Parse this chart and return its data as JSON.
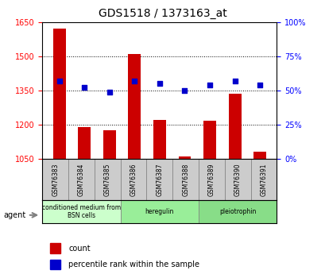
{
  "title": "GDS1518 / 1373163_at",
  "categories": [
    "GSM76383",
    "GSM76384",
    "GSM76385",
    "GSM76386",
    "GSM76387",
    "GSM76388",
    "GSM76389",
    "GSM76390",
    "GSM76391"
  ],
  "counts": [
    1620,
    1190,
    1175,
    1510,
    1220,
    1060,
    1218,
    1335,
    1080
  ],
  "percentiles": [
    57,
    52,
    49,
    57,
    55,
    50,
    54,
    57,
    54
  ],
  "ylim_left": [
    1050,
    1650
  ],
  "ylim_right": [
    0,
    100
  ],
  "yticks_left": [
    1050,
    1200,
    1350,
    1500,
    1650
  ],
  "yticks_right": [
    0,
    25,
    50,
    75,
    100
  ],
  "bar_color": "#cc0000",
  "dot_color": "#0000cc",
  "bar_bottom": 1050,
  "groups": [
    {
      "label": "conditioned medium from\nBSN cells",
      "start": 0,
      "end": 3,
      "color": "#ccffcc"
    },
    {
      "label": "heregulin",
      "start": 3,
      "end": 6,
      "color": "#99ee99"
    },
    {
      "label": "pleiotrophin",
      "start": 6,
      "end": 9,
      "color": "#88dd88"
    }
  ],
  "agent_label": "agent",
  "legend_count_label": "count",
  "legend_pct_label": "percentile rank within the sample",
  "grid_color": "#000000",
  "tick_area_color": "#cccccc",
  "bg_color": "#ffffff",
  "plot_bg_color": "#ffffff"
}
